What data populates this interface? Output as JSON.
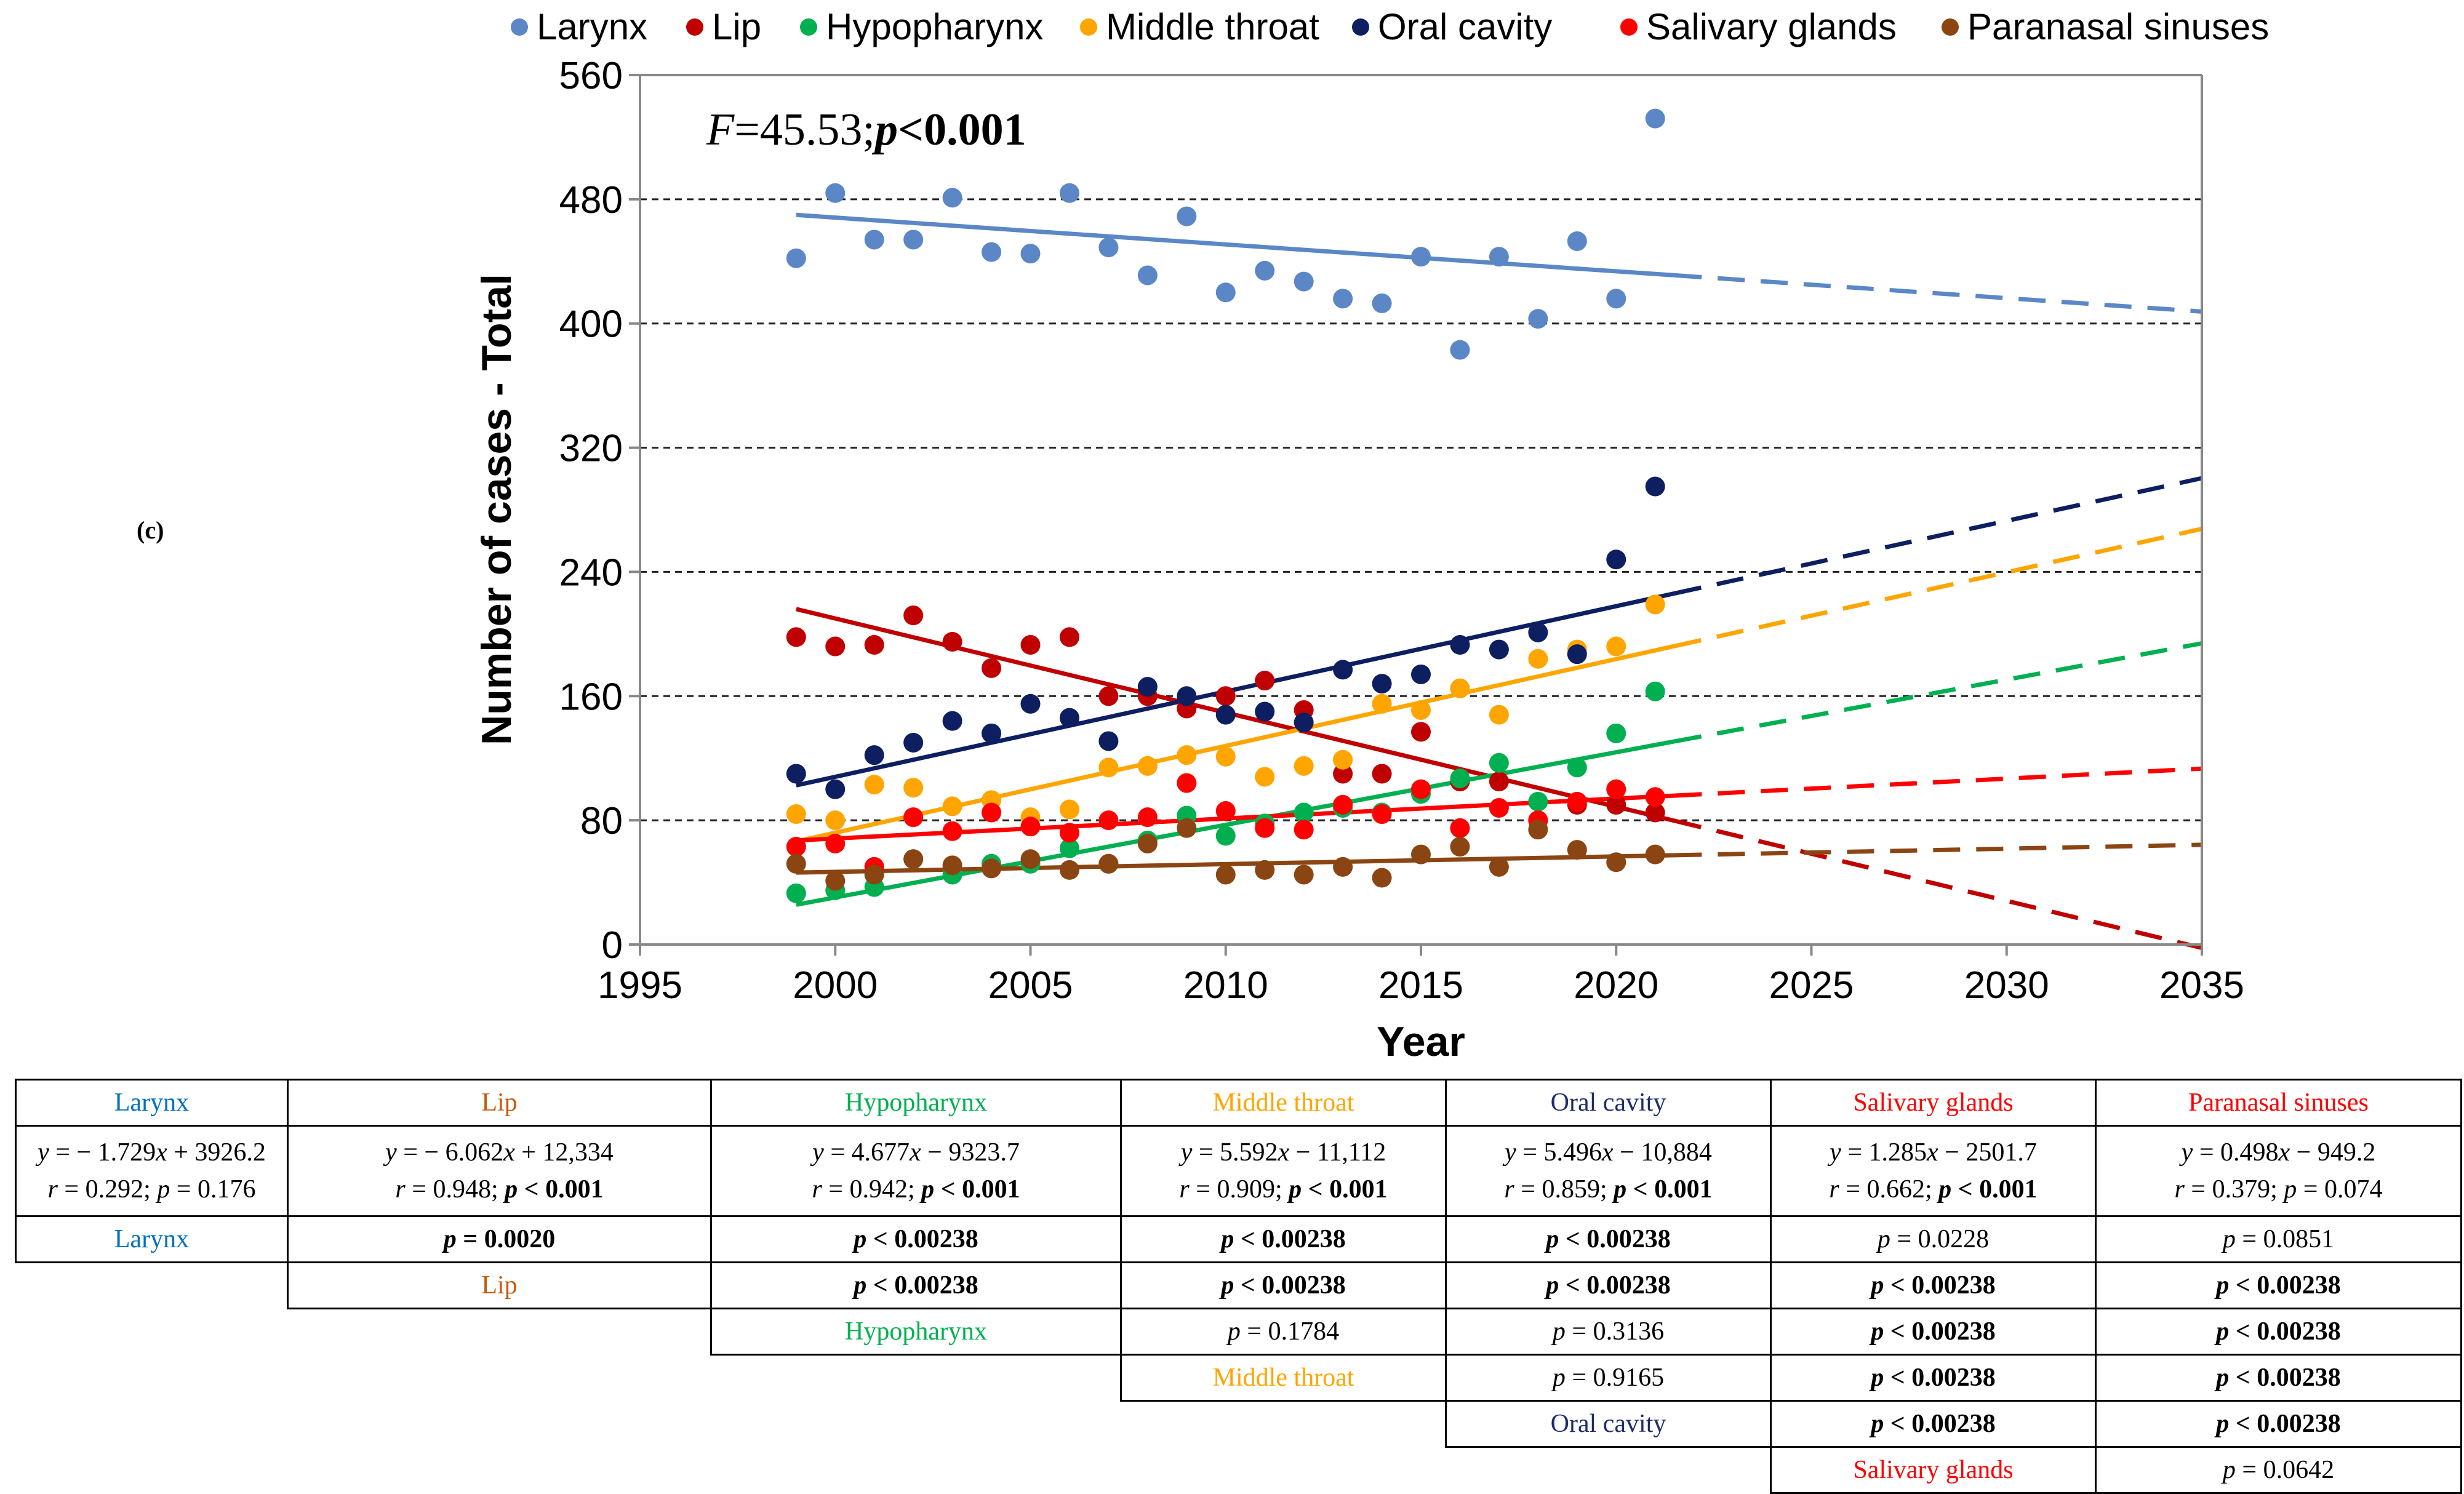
{
  "chart_data": {
    "type": "scatter",
    "title": "",
    "annotation": "F=45.53; p<0.001",
    "xlabel": "Year",
    "ylabel": "Number of cases - Total",
    "xlim": [
      1995,
      2035
    ],
    "ylim": [
      0,
      560
    ],
    "xticks": [
      1995,
      2000,
      2005,
      2010,
      2015,
      2020,
      2025,
      2030,
      2035
    ],
    "yticks": [
      0,
      80,
      160,
      240,
      320,
      400,
      480,
      560
    ],
    "gridlines": [
      80,
      160,
      240,
      320,
      400,
      480
    ],
    "legend_position": "top",
    "x": [
      1999,
      2000,
      2001,
      2002,
      2003,
      2004,
      2005,
      2006,
      2007,
      2008,
      2009,
      2010,
      2011,
      2012,
      2013,
      2014,
      2015,
      2016,
      2017,
      2018,
      2019,
      2020,
      2021
    ],
    "series": [
      {
        "name": "Larynx",
        "color": "#5b87c7",
        "fit": [
          -1.729,
          3926.2
        ],
        "values": [
          442,
          484,
          454,
          454,
          481,
          446,
          445,
          484,
          449,
          431,
          469,
          420,
          434,
          427,
          416,
          413,
          443,
          383,
          443,
          403,
          453,
          416,
          532
        ]
      },
      {
        "name": "Lip",
        "color": "#c00000",
        "fit": [
          -6.062,
          12334
        ],
        "values": [
          198,
          192,
          193,
          212,
          195,
          178,
          193,
          198,
          160,
          160,
          152,
          160,
          170,
          151,
          110,
          110,
          137,
          105,
          105,
          80,
          90,
          90,
          85
        ]
      },
      {
        "name": "Hypopharynx",
        "color": "#00b050",
        "fit": [
          4.677,
          -9323.7
        ],
        "values": [
          33,
          35,
          37,
          55,
          45,
          52,
          52,
          62,
          52,
          67,
          83,
          70,
          78,
          85,
          88,
          85,
          97,
          107,
          117,
          92,
          114,
          136,
          163
        ]
      },
      {
        "name": "Middle throat",
        "color": "#ffa500",
        "fit": [
          5.592,
          -11112
        ],
        "values": [
          84,
          80,
          103,
          101,
          89,
          93,
          82,
          87,
          114,
          115,
          122,
          121,
          108,
          115,
          119,
          155,
          151,
          165,
          148,
          184,
          190,
          192,
          219
        ]
      },
      {
        "name": "Oral cavity",
        "color": "#0d1f60",
        "fit": [
          5.496,
          -10884
        ],
        "values": [
          110,
          100,
          122,
          130,
          144,
          136,
          155,
          146,
          131,
          166,
          160,
          148,
          150,
          143,
          177,
          168,
          174,
          193,
          190,
          201,
          187,
          248,
          295
        ]
      },
      {
        "name": "Salivary glands",
        "color": "#ff0000",
        "fit": [
          1.285,
          -2501.7
        ],
        "values": [
          63,
          65,
          50,
          82,
          73,
          85,
          76,
          72,
          80,
          82,
          104,
          86,
          75,
          74,
          90,
          84,
          100,
          75,
          88,
          80,
          92,
          100,
          95
        ]
      },
      {
        "name": "Paranasal sinuses",
        "color": "#8b4513",
        "fit": [
          0.498,
          -949.2
        ],
        "values": [
          52,
          41,
          45,
          55,
          51,
          49,
          55,
          48,
          52,
          65,
          75,
          45,
          48,
          45,
          50,
          43,
          58,
          63,
          50,
          74,
          61,
          53,
          58
        ]
      }
    ]
  },
  "panel_label": "(c)",
  "table": {
    "headers": [
      "Larynx",
      "Lip",
      "Hypopharynx",
      "Middle throat",
      "Oral cavity",
      "Salivary glands",
      "Paranasal sinuses"
    ],
    "header_colors": [
      "#0070c0",
      "#c55a11",
      "#00b050",
      "#ffa500",
      "#1f2d6b",
      "#ff0000",
      "#ff0000"
    ],
    "equations": [
      "y = − 1.729x + 3926.2",
      "y = − 6.062x + 12,334",
      "y = 4.677x − 9323.7",
      "y = 5.592x − 11,112",
      "y = 5.496x − 10,884",
      "y = 1.285x − 2501.7",
      "y = 0.498x − 949.2"
    ],
    "fits": [
      "r = 0.292; p = 0.176",
      "r = 0.948; p < 0.001",
      "r = 0.942; p < 0.001",
      "r = 0.909; p < 0.001",
      "r = 0.859; p < 0.001",
      "r = 0.662; p < 0.001",
      "r = 0.379; p = 0.074"
    ],
    "pairwise": [
      {
        "label": "Larynx",
        "values": [
          "p = 0.0020",
          "p < 0.00238",
          "p < 0.00238",
          "p < 0.00238",
          "p = 0.0228",
          "p = 0.0851"
        ]
      },
      {
        "label": "Lip",
        "values": [
          "p < 0.00238",
          "p < 0.00238",
          "p < 0.00238",
          "p < 0.00238",
          "p < 0.00238"
        ]
      },
      {
        "label": "Hypopharynx",
        "values": [
          "p = 0.1784",
          "p = 0.3136",
          "p < 0.00238",
          "p < 0.00238"
        ]
      },
      {
        "label": "Middle throat",
        "values": [
          "p = 0.9165",
          "p < 0.00238",
          "p < 0.00238"
        ]
      },
      {
        "label": "Oral cavity",
        "values": [
          "p < 0.00238",
          "p < 0.00238"
        ]
      },
      {
        "label": "Salivary glands",
        "values": [
          "p = 0.0642"
        ]
      }
    ]
  }
}
